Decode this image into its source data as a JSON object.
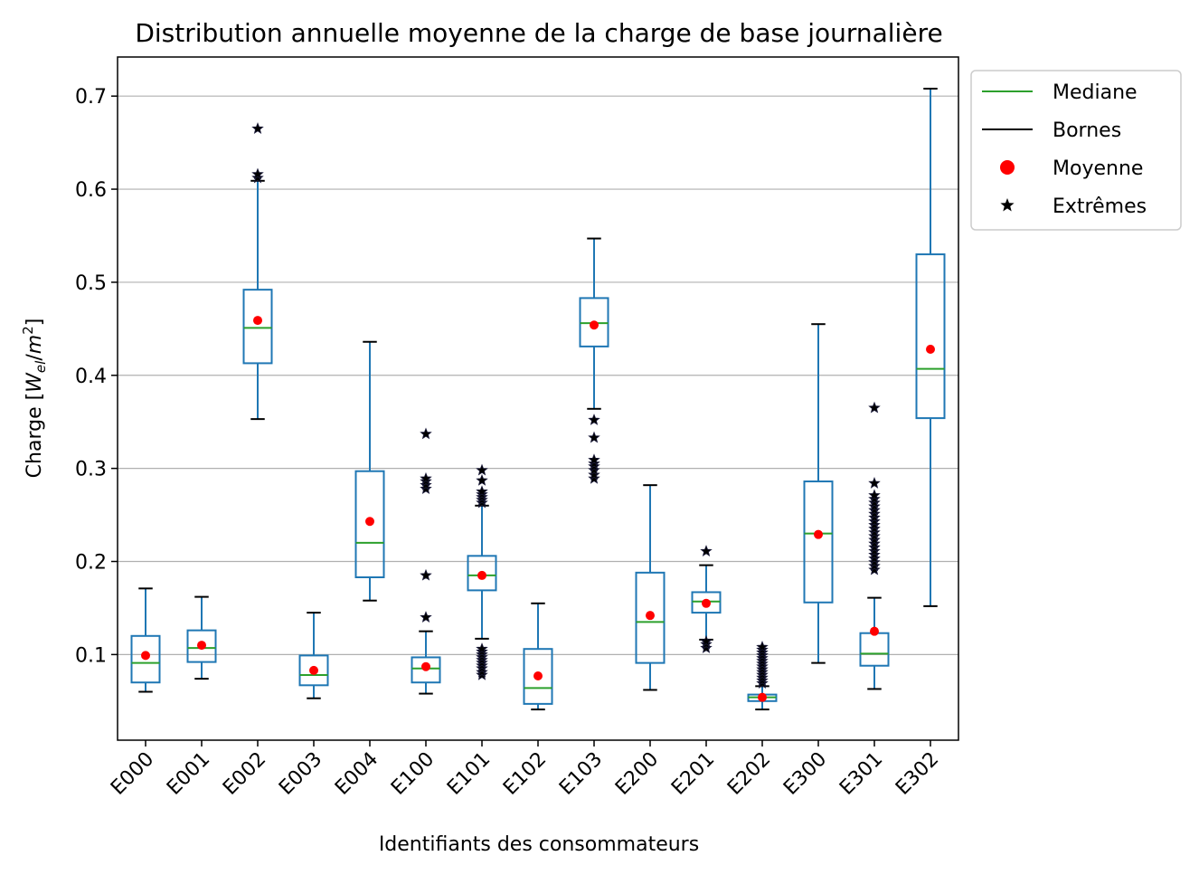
{
  "chart_data": {
    "type": "box",
    "title": "Distribution annuelle moyenne de la charge de base journalière",
    "xlabel": "Identifiants des consommateurs",
    "ylabel_prefix": "Charge [",
    "ylabel_unit": "W",
    "ylabel_sub": "el",
    "ylabel_sep": "/",
    "ylabel_m": "m",
    "ylabel_sup": "2",
    "ylabel_suffix": "]",
    "ylim": [
      0.008,
      0.742
    ],
    "yticks": [
      0.1,
      0.2,
      0.3,
      0.4,
      0.5,
      0.6,
      0.7
    ],
    "ytick_labels": [
      "0.1",
      "0.2",
      "0.3",
      "0.4",
      "0.5",
      "0.6",
      "0.7"
    ],
    "grid": "horizontal",
    "legend_position": "outside upper right",
    "colors": {
      "box": "#1f77b4",
      "median": "#2ca02c",
      "mean": "#ff0000",
      "caps": "#000000",
      "outliers": "#000000",
      "grid": "#b0b0b0"
    },
    "legend": [
      {
        "label": "Mediane",
        "kind": "line",
        "color": "#2ca02c"
      },
      {
        "label": "Bornes",
        "kind": "line",
        "color": "#000000"
      },
      {
        "label": "Moyenne",
        "kind": "dot",
        "color": "#ff0000"
      },
      {
        "label": "Extrêmes",
        "kind": "star",
        "color": "#000000"
      }
    ],
    "categories": [
      "E000",
      "E001",
      "E002",
      "E003",
      "E004",
      "E100",
      "E101",
      "E102",
      "E103",
      "E200",
      "E201",
      "E202",
      "E300",
      "E301",
      "E302"
    ],
    "boxes": [
      {
        "id": "E000",
        "whislo": 0.06,
        "q1": 0.07,
        "med": 0.091,
        "q3": 0.12,
        "whishi": 0.171,
        "mean": 0.099,
        "fliers": []
      },
      {
        "id": "E001",
        "whislo": 0.074,
        "q1": 0.092,
        "med": 0.107,
        "q3": 0.126,
        "whishi": 0.162,
        "mean": 0.11,
        "fliers": []
      },
      {
        "id": "E002",
        "whislo": 0.353,
        "q1": 0.413,
        "med": 0.451,
        "q3": 0.492,
        "whishi": 0.609,
        "mean": 0.459,
        "fliers": [
          0.612,
          0.616,
          0.665
        ]
      },
      {
        "id": "E003",
        "whislo": 0.053,
        "q1": 0.067,
        "med": 0.078,
        "q3": 0.099,
        "whishi": 0.145,
        "mean": 0.083,
        "fliers": []
      },
      {
        "id": "E004",
        "whislo": 0.158,
        "q1": 0.183,
        "med": 0.22,
        "q3": 0.297,
        "whishi": 0.436,
        "mean": 0.243,
        "fliers": []
      },
      {
        "id": "E100",
        "whislo": 0.058,
        "q1": 0.07,
        "med": 0.085,
        "q3": 0.097,
        "whishi": 0.125,
        "mean": 0.087,
        "fliers": [
          0.14,
          0.185,
          0.278,
          0.282,
          0.286,
          0.289,
          0.337
        ]
      },
      {
        "id": "E101",
        "whislo": 0.117,
        "q1": 0.169,
        "med": 0.185,
        "q3": 0.206,
        "whishi": 0.26,
        "mean": 0.185,
        "fliers": [
          0.078,
          0.081,
          0.085,
          0.088,
          0.091,
          0.094,
          0.097,
          0.1,
          0.103,
          0.106,
          0.263,
          0.266,
          0.269,
          0.272,
          0.275,
          0.287,
          0.298
        ]
      },
      {
        "id": "E102",
        "whislo": 0.041,
        "q1": 0.047,
        "med": 0.064,
        "q3": 0.106,
        "whishi": 0.155,
        "mean": 0.077,
        "fliers": []
      },
      {
        "id": "E103",
        "whislo": 0.364,
        "q1": 0.431,
        "med": 0.456,
        "q3": 0.483,
        "whishi": 0.547,
        "mean": 0.454,
        "fliers": [
          0.289,
          0.293,
          0.298,
          0.302,
          0.305,
          0.309,
          0.333,
          0.352
        ]
      },
      {
        "id": "E200",
        "whislo": 0.062,
        "q1": 0.091,
        "med": 0.135,
        "q3": 0.188,
        "whishi": 0.282,
        "mean": 0.142,
        "fliers": []
      },
      {
        "id": "E201",
        "whislo": 0.116,
        "q1": 0.145,
        "med": 0.157,
        "q3": 0.167,
        "whishi": 0.196,
        "mean": 0.155,
        "fliers": [
          0.107,
          0.111,
          0.114,
          0.211
        ]
      },
      {
        "id": "E202",
        "whislo": 0.041,
        "q1": 0.05,
        "med": 0.054,
        "q3": 0.057,
        "whishi": 0.066,
        "mean": 0.054,
        "fliers": [
          0.069,
          0.072,
          0.075,
          0.078,
          0.081,
          0.084,
          0.087,
          0.09,
          0.093,
          0.096,
          0.099,
          0.102,
          0.105,
          0.108
        ]
      },
      {
        "id": "E300",
        "whislo": 0.091,
        "q1": 0.156,
        "med": 0.23,
        "q3": 0.286,
        "whishi": 0.455,
        "mean": 0.229,
        "fliers": []
      },
      {
        "id": "E301",
        "whislo": 0.063,
        "q1": 0.088,
        "med": 0.101,
        "q3": 0.123,
        "whishi": 0.161,
        "mean": 0.125,
        "fliers": [
          0.191,
          0.195,
          0.199,
          0.203,
          0.207,
          0.211,
          0.215,
          0.219,
          0.223,
          0.227,
          0.231,
          0.235,
          0.239,
          0.243,
          0.247,
          0.251,
          0.255,
          0.259,
          0.263,
          0.267,
          0.271,
          0.284,
          0.365
        ]
      },
      {
        "id": "E302",
        "whislo": 0.152,
        "q1": 0.354,
        "med": 0.407,
        "q3": 0.53,
        "whishi": 0.708,
        "mean": 0.428,
        "fliers": []
      }
    ]
  }
}
